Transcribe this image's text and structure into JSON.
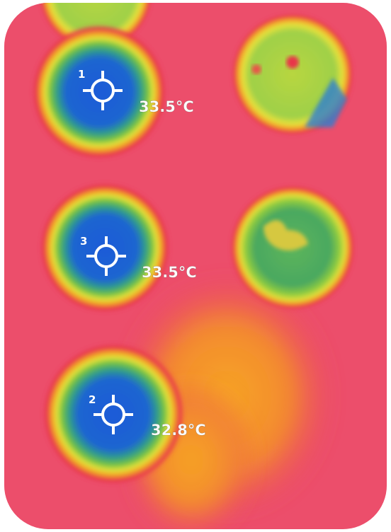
{
  "markers": [
    {
      "label": "1",
      "temperature": "33.5°C"
    },
    {
      "label": "3",
      "temperature": "33.5°C"
    },
    {
      "label": "2",
      "temperature": "32.8°C"
    }
  ]
}
